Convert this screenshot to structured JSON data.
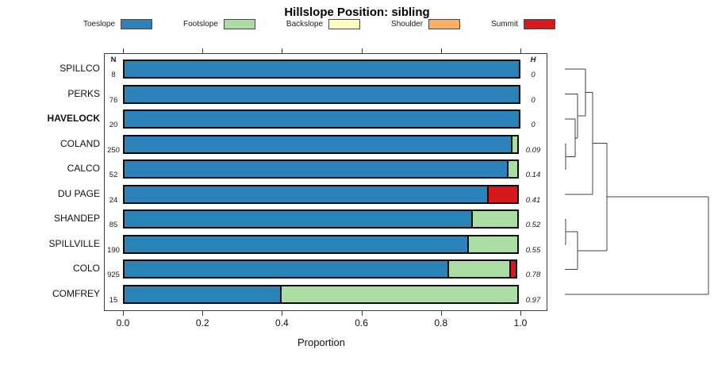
{
  "title": "Hillslope Position: sibling",
  "legend": [
    {
      "label": "Toeslope",
      "color": "#2B83BA"
    },
    {
      "label": "Footslope",
      "color": "#ABDDA4"
    },
    {
      "label": "Backslope",
      "color": "#FFFFBF"
    },
    {
      "label": "Shoulder",
      "color": "#FDAE61"
    },
    {
      "label": "Summit",
      "color": "#D7191C"
    }
  ],
  "columns": {
    "n_header": "N",
    "h_header": "H"
  },
  "axis": {
    "label": "Proportion",
    "tick_labels": [
      "0.0",
      "0.2",
      "0.4",
      "0.6",
      "0.8",
      "1.0"
    ]
  },
  "chart_data": {
    "type": "bar",
    "stacked": true,
    "orientation": "horizontal",
    "title": "Hillslope Position: sibling",
    "xlabel": "Proportion",
    "xlim": [
      0,
      1
    ],
    "xticks": [
      0,
      0.2,
      0.4,
      0.6,
      0.8,
      1.0
    ],
    "legend_position": "top",
    "grid": false,
    "categories": [
      "SPILLCO",
      "PERKS",
      "HAVELOCK",
      "COLAND",
      "CALCO",
      "DU PAGE",
      "SHANDEP",
      "SPILLVILLE",
      "COLO",
      "COMFREY"
    ],
    "emphasized_category": "HAVELOCK",
    "n_values": [
      "8",
      "76",
      "20",
      "250",
      "52",
      "24",
      "85",
      "190",
      "925",
      "15"
    ],
    "h_values": [
      "0",
      "0",
      "0",
      "0.09",
      "0.14",
      "0.41",
      "0.52",
      "0.55",
      "0.78",
      "0.97"
    ],
    "series": [
      {
        "name": "Toeslope",
        "color": "#2B83BA",
        "values": [
          1.0,
          1.0,
          1.0,
          0.98,
          0.97,
          0.92,
          0.88,
          0.87,
          0.82,
          0.4
        ]
      },
      {
        "name": "Footslope",
        "color": "#ABDDA4",
        "values": [
          0,
          0,
          0,
          0.02,
          0.03,
          0,
          0.12,
          0.13,
          0.16,
          0.6
        ]
      },
      {
        "name": "Backslope",
        "color": "#FFFFBF",
        "values": [
          0,
          0,
          0,
          0,
          0,
          0,
          0,
          0,
          0,
          0
        ]
      },
      {
        "name": "Shoulder",
        "color": "#FDAE61",
        "values": [
          0,
          0,
          0,
          0,
          0,
          0,
          0,
          0,
          0,
          0
        ]
      },
      {
        "name": "Summit",
        "color": "#D7191C",
        "values": [
          0,
          0,
          0,
          0,
          0,
          0.08,
          0,
          0,
          0.02,
          0
        ]
      }
    ],
    "dendrogram": {
      "leaf_order": [
        "SPILLCO",
        "PERKS",
        "HAVELOCK",
        "COLAND",
        "CALCO",
        "DU PAGE",
        "SHANDEP",
        "SPILLVILLE",
        "COLO",
        "COMFREY"
      ],
      "merges": [
        {
          "id": "M1",
          "a": "L3",
          "b": "L4",
          "h": 0.006
        },
        {
          "id": "M2",
          "a": "L2",
          "b": "M1",
          "h": 0.072
        },
        {
          "id": "M3",
          "a": "L1",
          "b": "M2",
          "h": 0.088
        },
        {
          "id": "M4",
          "a": "L0",
          "b": "M3",
          "h": 0.144
        },
        {
          "id": "M5",
          "a": "M4",
          "b": "L5",
          "h": 0.193
        },
        {
          "id": "M6",
          "a": "L6",
          "b": "L7",
          "h": 0.006
        },
        {
          "id": "M7",
          "a": "M6",
          "b": "L8",
          "h": 0.088
        },
        {
          "id": "M8",
          "a": "M5",
          "b": "M7",
          "h": 0.293
        },
        {
          "id": "M9",
          "a": "M8",
          "b": "L9",
          "h": 1.0
        }
      ]
    }
  }
}
